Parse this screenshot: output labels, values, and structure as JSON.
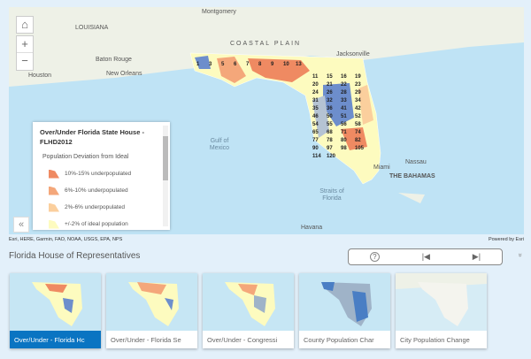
{
  "map": {
    "labels": {
      "montgomery": "Montgomery",
      "louisiana": "LOUISIANA",
      "baton_rouge": "Baton Rouge",
      "new_orleans": "New Orleans",
      "houston": "Houston",
      "coastal_plain": "COASTAL PLAIN",
      "jacksonville": "Jacksonville",
      "gulf": "Gulf of Mexico",
      "nassau": "Nassau",
      "bahamas": "THE BAHAMAS",
      "straits": "Straits of Florida",
      "havana": "Havana",
      "miami": "Miami"
    },
    "district_numbers": [
      "1",
      "3",
      "5",
      "6",
      "7",
      "8",
      "9",
      "10",
      "13",
      "11",
      "15",
      "16",
      "19",
      "20",
      "21",
      "22",
      "23",
      "24",
      "26",
      "28",
      "29",
      "31",
      "32",
      "33",
      "34",
      "35",
      "36",
      "41",
      "42",
      "46",
      "50",
      "51",
      "52",
      "54",
      "55",
      "56",
      "58",
      "65",
      "68",
      "71",
      "74",
      "77",
      "78",
      "80",
      "82",
      "90",
      "97",
      "98",
      "105",
      "114",
      "120"
    ]
  },
  "zoom": {
    "home": "⌂",
    "in": "+",
    "out": "−"
  },
  "legend": {
    "title": "Over/Under Florida State House - FLHD2012",
    "subtitle": "Population Deviation from Ideal",
    "items": [
      {
        "label": "10%-15% underpopulated",
        "color": "#ef8a62"
      },
      {
        "label": "6%-10% underpopulated",
        "color": "#f4a77a"
      },
      {
        "label": "2%-6% underpopulated",
        "color": "#fbcf9d"
      },
      {
        "label": "+/-2% of ideal population",
        "color": "#fdfbbf"
      }
    ]
  },
  "collapse_label": "«",
  "attribution": {
    "left": "Esri, HERE, Garmin, FAO, NOAA, USGS, EPA, NPS",
    "right": "Powered by Esri"
  },
  "series_title": "Florida House of Representatives",
  "nav": {
    "help": "?",
    "prev": "|◀",
    "next": "▶|",
    "expand": "»"
  },
  "cards": [
    {
      "label": "Over/Under - Florida Hc",
      "selected": true
    },
    {
      "label": "Over/Under - Florida Se"
    },
    {
      "label": "Over/Under - Congressi"
    },
    {
      "label": "County Population Char"
    },
    {
      "label": "City Population Change"
    }
  ],
  "colors": {
    "accent": "#0a74c2",
    "blue": "#4a7ec4",
    "gray": "#9fb3c8"
  }
}
